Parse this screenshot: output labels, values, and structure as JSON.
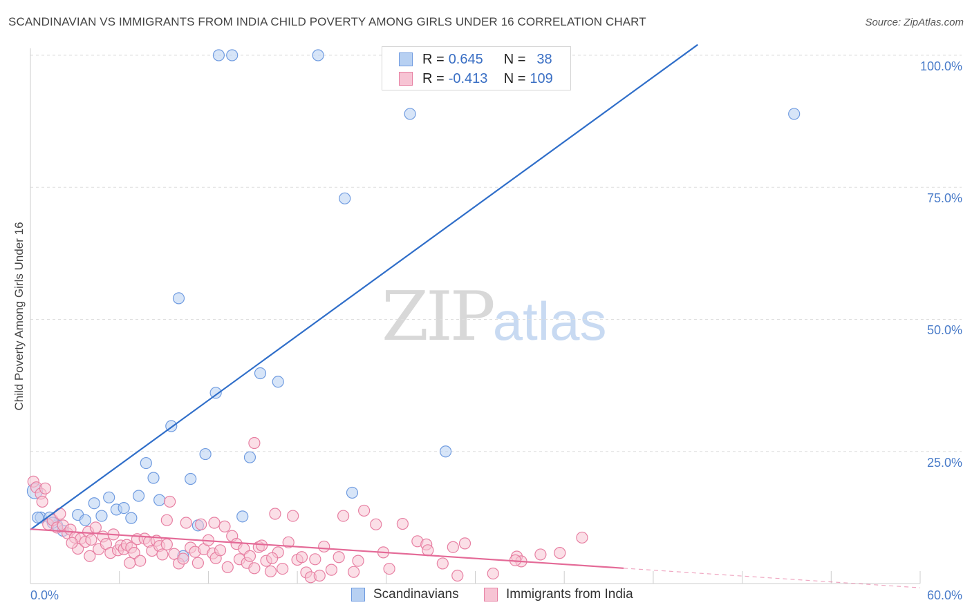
{
  "title": "SCANDINAVIAN VS IMMIGRANTS FROM INDIA CHILD POVERTY AMONG GIRLS UNDER 16 CORRELATION CHART",
  "source": "Source: ZipAtlas.com",
  "watermark": {
    "zip": "ZIP",
    "atlas": "atlas"
  },
  "colors": {
    "blue_fill": "#b7d0f2",
    "blue_stroke": "#6f9be0",
    "blue_line": "#2f6ec9",
    "pink_fill": "#f7c4d4",
    "pink_stroke": "#e77fa2",
    "pink_line": "#e46a97",
    "grid": "#dedede",
    "tick_text": "#4a7cc9"
  },
  "legend": {
    "rows": [
      {
        "r_label": "R =",
        "r_value": "0.645",
        "n_label": "N =",
        "n_value": "38"
      },
      {
        "r_label": "R =",
        "r_value": "-0.413",
        "n_label": "N =",
        "n_value": "109"
      }
    ]
  },
  "chart_data": {
    "type": "scatter",
    "title": "SCANDINAVIAN VS IMMIGRANTS FROM INDIA CHILD POVERTY AMONG GIRLS UNDER 16 CORRELATION CHART",
    "xlabel": "",
    "ylabel": "Child Poverty Among Girls Under 16",
    "xlim": [
      0,
      60
    ],
    "ylim": [
      0,
      102
    ],
    "x_tick_labels": [
      "0.0%",
      "60.0%"
    ],
    "y_ticks": [
      25,
      50,
      75,
      100
    ],
    "y_tick_labels": [
      "25.0%",
      "50.0%",
      "75.0%",
      "100.0%"
    ],
    "legend_position": "top-center",
    "series": [
      {
        "name": "Scandinavians",
        "color": "#6f9be0",
        "R": 0.645,
        "N": 38,
        "trend": {
          "x0": 0,
          "y0": 10.2,
          "x1": 45,
          "y1": 102
        },
        "points": [
          [
            0.3,
            17.5
          ],
          [
            0.7,
            12.5
          ],
          [
            1.3,
            12.5
          ],
          [
            1.8,
            11
          ],
          [
            2.2,
            10
          ],
          [
            3.2,
            13
          ],
          [
            3.7,
            12
          ],
          [
            4.3,
            15.2
          ],
          [
            4.8,
            12.8
          ],
          [
            5.3,
            16.3
          ],
          [
            5.8,
            14
          ],
          [
            6.3,
            14.3
          ],
          [
            6.8,
            12.4
          ],
          [
            7.3,
            16.6
          ],
          [
            7.8,
            22.8
          ],
          [
            8.3,
            20
          ],
          [
            8.7,
            15.8
          ],
          [
            9.5,
            29.8
          ],
          [
            10,
            54
          ],
          [
            10.3,
            5.2
          ],
          [
            10.8,
            19.8
          ],
          [
            11.3,
            11
          ],
          [
            11.8,
            24.5
          ],
          [
            12.5,
            36.1
          ],
          [
            12.7,
            100
          ],
          [
            13.6,
            100
          ],
          [
            14.3,
            12.7
          ],
          [
            14.8,
            23.9
          ],
          [
            15.5,
            39.8
          ],
          [
            16.7,
            38.2
          ],
          [
            19.4,
            100
          ],
          [
            21.2,
            72.9
          ],
          [
            21.7,
            17.2
          ],
          [
            25.6,
            88.9
          ],
          [
            28,
            25
          ],
          [
            51.5,
            88.9
          ],
          [
            0.5,
            12.5
          ],
          [
            1.5,
            11.5
          ]
        ]
      },
      {
        "name": "Immigrants from India",
        "color": "#e77fa2",
        "R": -0.413,
        "N": 109,
        "trend": {
          "x0": 0,
          "y0": 10.3,
          "x1": 40,
          "y1": 2.9,
          "dash_to_x": 60,
          "dash_to_y": -0.8
        },
        "points": [
          [
            0.2,
            19.3
          ],
          [
            0.4,
            18.2
          ],
          [
            0.7,
            17
          ],
          [
            0.8,
            15.5
          ],
          [
            1,
            18
          ],
          [
            1.2,
            11.2
          ],
          [
            1.5,
            12
          ],
          [
            1.8,
            10.6
          ],
          [
            2,
            13.2
          ],
          [
            2.2,
            11
          ],
          [
            2.5,
            9.5
          ],
          [
            2.7,
            10.2
          ],
          [
            3,
            8.7
          ],
          [
            3.2,
            6.6
          ],
          [
            3.4,
            8.5
          ],
          [
            3.7,
            7.9
          ],
          [
            3.9,
            9.8
          ],
          [
            4.1,
            8.3
          ],
          [
            4.4,
            10.6
          ],
          [
            4.6,
            6.5
          ],
          [
            4.9,
            8.9
          ],
          [
            5.1,
            7.5
          ],
          [
            5.4,
            5.8
          ],
          [
            5.6,
            9.3
          ],
          [
            5.9,
            6.3
          ],
          [
            6.1,
            7.2
          ],
          [
            6.3,
            6.5
          ],
          [
            6.5,
            7.3
          ],
          [
            6.8,
            6.8
          ],
          [
            7,
            5.8
          ],
          [
            7.2,
            8.4
          ],
          [
            7.4,
            4.3
          ],
          [
            7.7,
            8.5
          ],
          [
            8,
            7.9
          ],
          [
            8.2,
            6.2
          ],
          [
            8.5,
            8.1
          ],
          [
            8.7,
            7.1
          ],
          [
            8.9,
            5.5
          ],
          [
            9.2,
            7.4
          ],
          [
            9.4,
            15.5
          ],
          [
            9.2,
            12
          ],
          [
            9.7,
            5.6
          ],
          [
            10,
            3.8
          ],
          [
            10.3,
            4.7
          ],
          [
            10.5,
            11.5
          ],
          [
            10.8,
            6.8
          ],
          [
            11.1,
            6
          ],
          [
            11.3,
            3.9
          ],
          [
            11.5,
            11.2
          ],
          [
            11.7,
            6.5
          ],
          [
            12,
            8.2
          ],
          [
            12.3,
            5.7
          ],
          [
            12.5,
            4.8
          ],
          [
            12.8,
            6.3
          ],
          [
            13.1,
            10.8
          ],
          [
            13.3,
            3.1
          ],
          [
            13.6,
            9
          ],
          [
            13.9,
            7.5
          ],
          [
            14.1,
            4.6
          ],
          [
            14.4,
            6.6
          ],
          [
            14.6,
            3.9
          ],
          [
            14.8,
            5.2
          ],
          [
            15.1,
            26.6
          ],
          [
            15.4,
            6.9
          ],
          [
            15.6,
            7.2
          ],
          [
            15.9,
            4.3
          ],
          [
            16.2,
            2.3
          ],
          [
            16.5,
            13.2
          ],
          [
            16.7,
            5.9
          ],
          [
            17,
            2.8
          ],
          [
            17.4,
            7.8
          ],
          [
            17.7,
            12.8
          ],
          [
            18,
            4.5
          ],
          [
            18.3,
            5
          ],
          [
            18.6,
            2.1
          ],
          [
            18.9,
            1.2
          ],
          [
            19.2,
            4.6
          ],
          [
            19.5,
            1.5
          ],
          [
            19.8,
            7
          ],
          [
            20.3,
            2.6
          ],
          [
            20.8,
            5
          ],
          [
            21.1,
            12.8
          ],
          [
            22.1,
            4.3
          ],
          [
            22.5,
            13.8
          ],
          [
            23.3,
            11.2
          ],
          [
            23.8,
            5.9
          ],
          [
            24.2,
            2.8
          ],
          [
            25.1,
            11.3
          ],
          [
            26.1,
            8
          ],
          [
            26.7,
            7.4
          ],
          [
            27.8,
            3.8
          ],
          [
            28.5,
            6.9
          ],
          [
            28.8,
            1.5
          ],
          [
            29.3,
            7.6
          ],
          [
            31.2,
            1.9
          ],
          [
            32.8,
            5.1
          ],
          [
            33.1,
            4.2
          ],
          [
            34.4,
            5.5
          ],
          [
            35.7,
            5.8
          ],
          [
            37.2,
            8.7
          ],
          [
            32.7,
            4.4
          ],
          [
            26.8,
            6.3
          ],
          [
            2.8,
            7.7
          ],
          [
            12.4,
            11.5
          ],
          [
            16.3,
            4.8
          ],
          [
            4.0,
            5.2
          ],
          [
            6.7,
            3.9
          ],
          [
            21.8,
            2.2
          ],
          [
            15.1,
            2.9
          ]
        ]
      }
    ]
  }
}
